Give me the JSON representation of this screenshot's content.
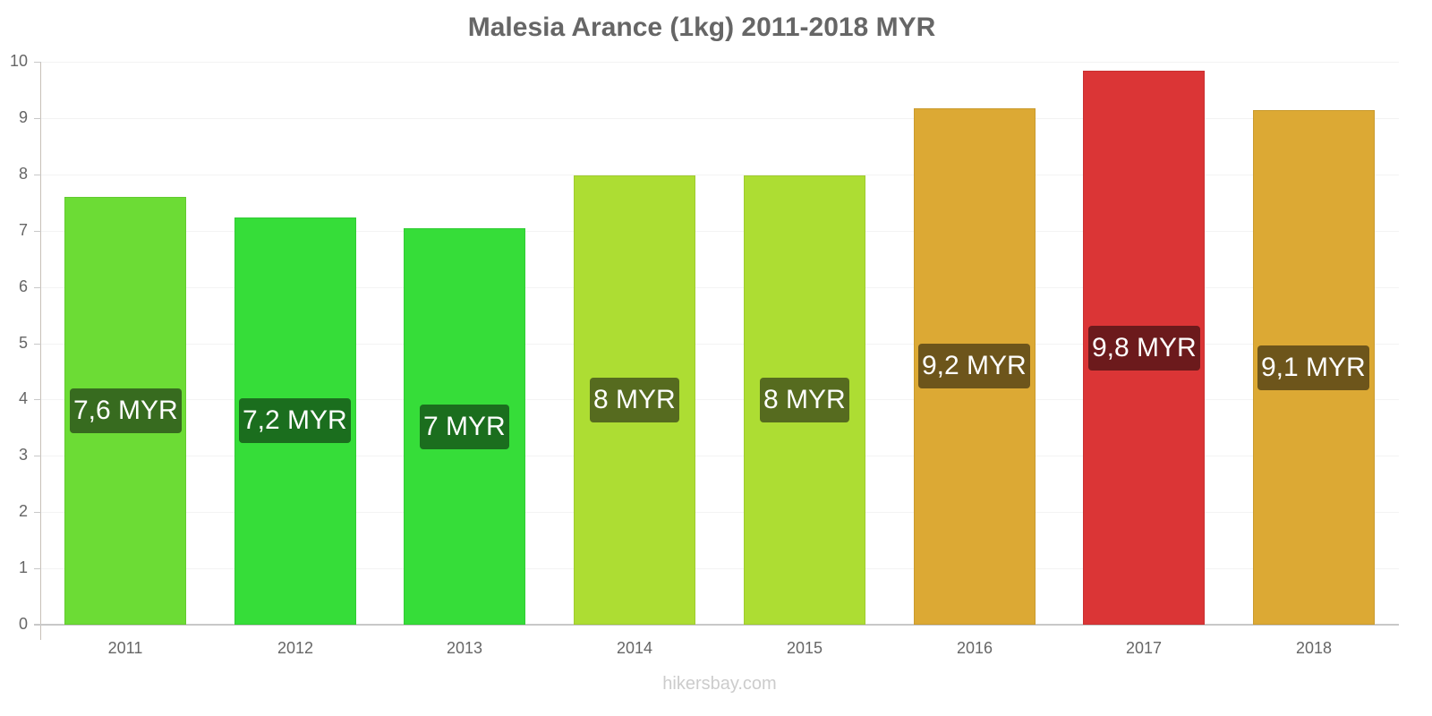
{
  "chart": {
    "title": "Malesia Arance (1kg) 2011-2018 MYR",
    "watermark": "hikersbay.com",
    "y_ticks": [
      "0",
      "1",
      "2",
      "3",
      "4",
      "5",
      "6",
      "7",
      "8",
      "9",
      "10"
    ],
    "bars": [
      {
        "year": "2011",
        "label": "7,6 MYR",
        "value": 7.6,
        "color": "#6cdc35",
        "label_bg": "#376b1f"
      },
      {
        "year": "2012",
        "label": "7,2 MYR",
        "value": 7.24,
        "color": "#36dd39",
        "label_bg": "#1b6e1e"
      },
      {
        "year": "2013",
        "label": "7 MYR",
        "value": 7.04,
        "color": "#36dd39",
        "label_bg": "#1b6e1e"
      },
      {
        "year": "2014",
        "label": "8 MYR",
        "value": 7.98,
        "color": "#addd33",
        "label_bg": "#566b1f"
      },
      {
        "year": "2015",
        "label": "8 MYR",
        "value": 7.98,
        "color": "#addd33",
        "label_bg": "#566b1f"
      },
      {
        "year": "2016",
        "label": "9,2 MYR",
        "value": 9.18,
        "color": "#dca934",
        "label_bg": "#6d551b"
      },
      {
        "year": "2017",
        "label": "9,8 MYR",
        "value": 9.84,
        "color": "#db3536",
        "label_bg": "#6c1a1c"
      },
      {
        "year": "2018",
        "label": "9,1 MYR",
        "value": 9.14,
        "color": "#dca934",
        "label_bg": "#6d551b"
      }
    ]
  },
  "chart_data": {
    "type": "bar",
    "title": "Malesia Arance (1kg) 2011-2018 MYR",
    "xlabel": "",
    "ylabel": "",
    "categories": [
      "2011",
      "2012",
      "2013",
      "2014",
      "2015",
      "2016",
      "2017",
      "2018"
    ],
    "values": [
      7.6,
      7.24,
      7.04,
      7.98,
      7.98,
      9.18,
      9.84,
      9.14
    ],
    "data_labels": [
      "7,6 MYR",
      "7,2 MYR",
      "7 MYR",
      "8 MYR",
      "8 MYR",
      "9,2 MYR",
      "9,8 MYR",
      "9,1 MYR"
    ],
    "colors": [
      "#6cdc35",
      "#36dd39",
      "#36dd39",
      "#addd33",
      "#addd33",
      "#dca934",
      "#db3536",
      "#dca934"
    ],
    "ylim": [
      0,
      10
    ],
    "y_ticks": [
      0,
      1,
      2,
      3,
      4,
      5,
      6,
      7,
      8,
      9,
      10
    ],
    "grid": true,
    "legend": null,
    "source": "hikersbay.com"
  }
}
